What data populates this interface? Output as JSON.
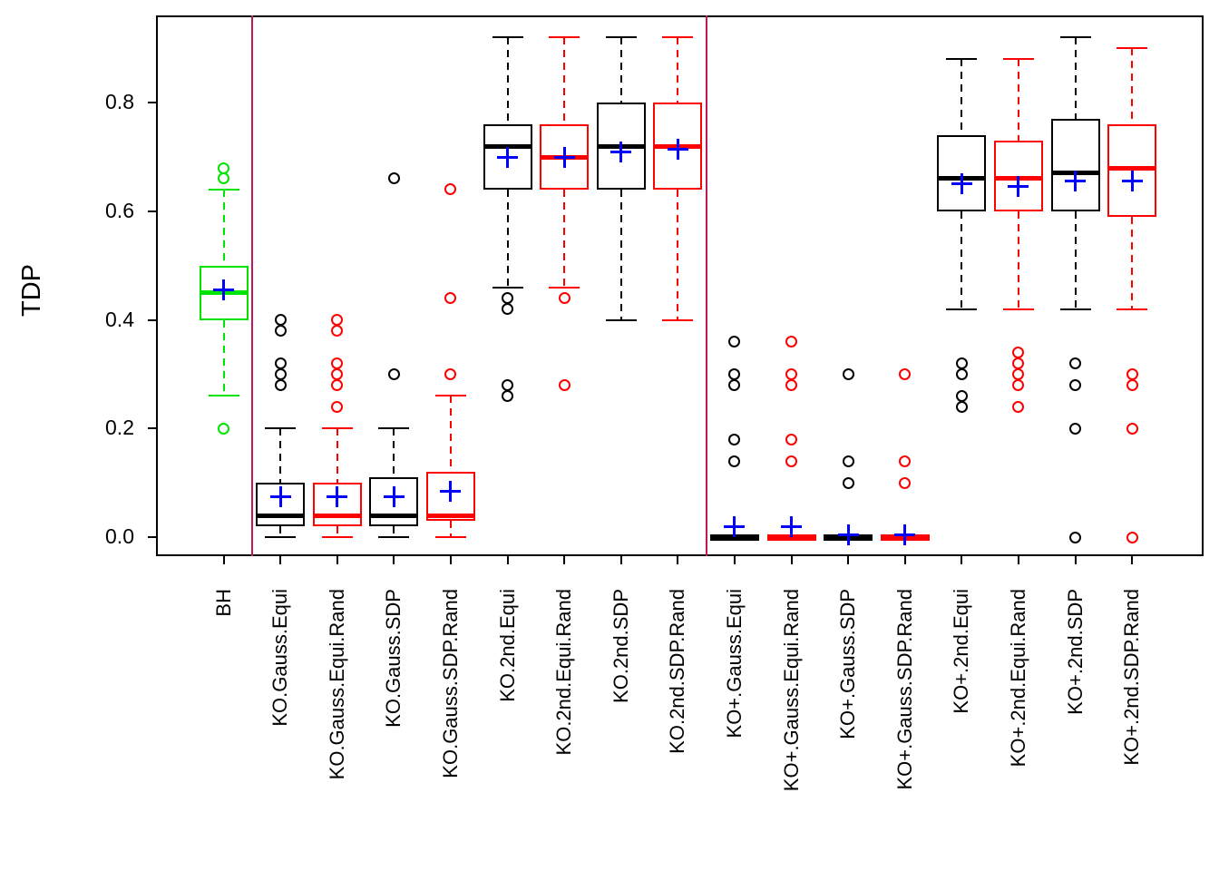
{
  "chart_data": {
    "type": "boxplot",
    "title": "",
    "ylabel": "TDP",
    "xlabel": "",
    "ylim": [
      -0.04,
      0.96
    ],
    "grid": false,
    "y_tick_labels": [
      "0.0",
      "0.2",
      "0.4",
      "0.6",
      "0.8"
    ],
    "y_tick_values": [
      0,
      0.2,
      0.4,
      0.6,
      0.8
    ],
    "mean_marker": {
      "symbol": "plus",
      "color": "#0000FF"
    },
    "separator_color": "#C2185B",
    "separators": [
      {
        "after_index": 0
      },
      {
        "after_index": 8
      }
    ],
    "groups": [
      {
        "label": "BH",
        "color": "#00E400",
        "whisker_low": 0.26,
        "q1": 0.4,
        "median": 0.45,
        "q3": 0.5,
        "whisker_high": 0.64,
        "mean": 0.455,
        "outliers": [
          0.68,
          0.66,
          0.2
        ]
      },
      {
        "label": "KO.Gauss.Equi",
        "color": "#000000",
        "whisker_low": 0.0,
        "q1": 0.02,
        "median": 0.04,
        "q3": 0.1,
        "whisker_high": 0.2,
        "mean": 0.075,
        "outliers": [
          0.4,
          0.38,
          0.32,
          0.3,
          0.28
        ]
      },
      {
        "label": "KO.Gauss.Equi.Rand",
        "color": "#FF0000",
        "whisker_low": 0.0,
        "q1": 0.02,
        "median": 0.04,
        "q3": 0.1,
        "whisker_high": 0.2,
        "mean": 0.075,
        "outliers": [
          0.4,
          0.38,
          0.32,
          0.3,
          0.28,
          0.24
        ]
      },
      {
        "label": "KO.Gauss.SDP",
        "color": "#000000",
        "whisker_low": 0.0,
        "q1": 0.02,
        "median": 0.04,
        "q3": 0.11,
        "whisker_high": 0.2,
        "mean": 0.075,
        "outliers": [
          0.66,
          0.3
        ]
      },
      {
        "label": "KO.Gauss.SDP.Rand",
        "color": "#FF0000",
        "whisker_low": 0.0,
        "q1": 0.03,
        "median": 0.04,
        "q3": 0.12,
        "whisker_high": 0.26,
        "mean": 0.085,
        "outliers": [
          0.64,
          0.44,
          0.3
        ]
      },
      {
        "label": "KO.2nd.Equi",
        "color": "#000000",
        "whisker_low": 0.46,
        "q1": 0.64,
        "median": 0.72,
        "q3": 0.76,
        "whisker_high": 0.92,
        "mean": 0.7,
        "outliers": [
          0.44,
          0.42,
          0.28,
          0.26
        ]
      },
      {
        "label": "KO.2nd.Equi.Rand",
        "color": "#FF0000",
        "whisker_low": 0.46,
        "q1": 0.64,
        "median": 0.7,
        "q3": 0.76,
        "whisker_high": 0.92,
        "mean": 0.7,
        "outliers": [
          0.44,
          0.28
        ]
      },
      {
        "label": "KO.2nd.SDP",
        "color": "#000000",
        "whisker_low": 0.4,
        "q1": 0.64,
        "median": 0.72,
        "q3": 0.8,
        "whisker_high": 0.92,
        "mean": 0.71,
        "outliers": []
      },
      {
        "label": "KO.2nd.SDP.Rand",
        "color": "#FF0000",
        "whisker_low": 0.4,
        "q1": 0.64,
        "median": 0.72,
        "q3": 0.8,
        "whisker_high": 0.92,
        "mean": 0.715,
        "outliers": []
      },
      {
        "label": "KO+.Gauss.Equi",
        "color": "#000000",
        "whisker_low": 0.0,
        "q1": 0.0,
        "median": 0.0,
        "q3": 0.0,
        "whisker_high": 0.0,
        "mean": 0.02,
        "outliers": [
          0.36,
          0.3,
          0.28,
          0.18,
          0.14
        ]
      },
      {
        "label": "KO+.Gauss.Equi.Rand",
        "color": "#FF0000",
        "whisker_low": 0.0,
        "q1": 0.0,
        "median": 0.0,
        "q3": 0.0,
        "whisker_high": 0.0,
        "mean": 0.02,
        "outliers": [
          0.36,
          0.3,
          0.28,
          0.18,
          0.14
        ]
      },
      {
        "label": "KO+.Gauss.SDP",
        "color": "#000000",
        "whisker_low": 0.0,
        "q1": 0.0,
        "median": 0.0,
        "q3": 0.0,
        "whisker_high": 0.0,
        "mean": 0.005,
        "outliers": [
          0.3,
          0.14,
          0.1
        ]
      },
      {
        "label": "KO+.Gauss.SDP.Rand",
        "color": "#FF0000",
        "whisker_low": 0.0,
        "q1": 0.0,
        "median": 0.0,
        "q3": 0.0,
        "whisker_high": 0.0,
        "mean": 0.005,
        "outliers": [
          0.3,
          0.14,
          0.1
        ]
      },
      {
        "label": "KO+.2nd.Equi",
        "color": "#000000",
        "whisker_low": 0.42,
        "q1": 0.6,
        "median": 0.66,
        "q3": 0.74,
        "whisker_high": 0.88,
        "mean": 0.65,
        "outliers": [
          0.32,
          0.3,
          0.26,
          0.24
        ]
      },
      {
        "label": "KO+.2nd.Equi.Rand",
        "color": "#FF0000",
        "whisker_low": 0.42,
        "q1": 0.6,
        "median": 0.66,
        "q3": 0.73,
        "whisker_high": 0.88,
        "mean": 0.645,
        "outliers": [
          0.34,
          0.32,
          0.3,
          0.28,
          0.24
        ]
      },
      {
        "label": "KO+.2nd.SDP",
        "color": "#000000",
        "whisker_low": 0.42,
        "q1": 0.6,
        "median": 0.67,
        "q3": 0.77,
        "whisker_high": 0.92,
        "mean": 0.655,
        "outliers": [
          0.32,
          0.28,
          0.2,
          0.0
        ]
      },
      {
        "label": "KO+.2nd.SDP.Rand",
        "color": "#FF0000",
        "whisker_low": 0.42,
        "q1": 0.59,
        "median": 0.68,
        "q3": 0.76,
        "whisker_high": 0.9,
        "mean": 0.655,
        "outliers": [
          0.3,
          0.28,
          0.2,
          0.0
        ]
      }
    ]
  }
}
